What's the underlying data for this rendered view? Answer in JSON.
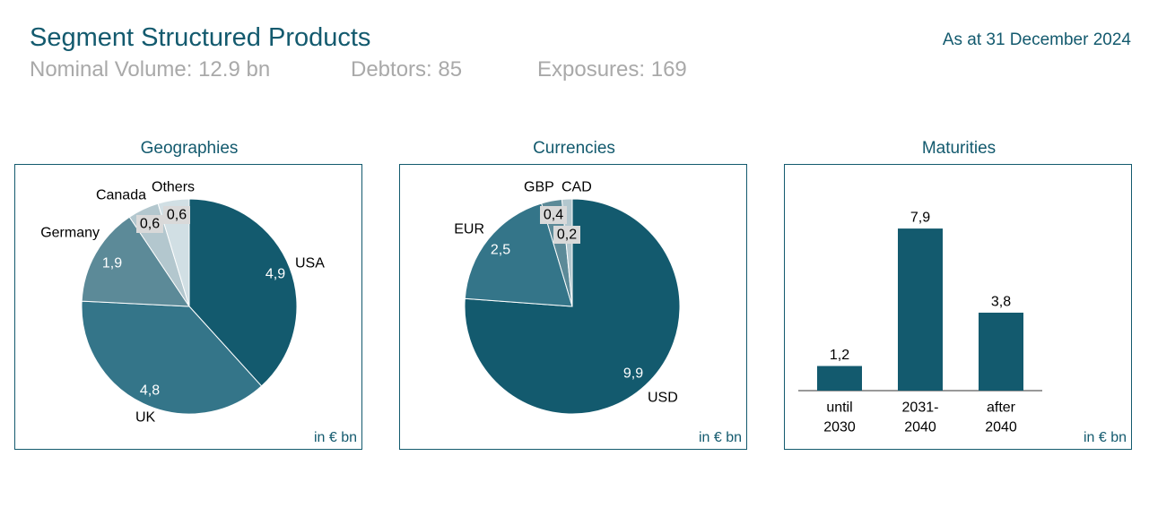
{
  "header": {
    "title": "Segment Structured Products",
    "date": "As at 31 December 2024",
    "stats": [
      "Nominal Volume: 12.9 bn",
      "Debtors: 85",
      "Exposures: 169"
    ]
  },
  "unit_label": "in € bn",
  "chart_data": [
    {
      "type": "pie",
      "title": "Geographies",
      "slices": [
        {
          "label": "USA",
          "value": 4.9,
          "value_label": "4,9",
          "color": "#135a6e"
        },
        {
          "label": "UK",
          "value": 4.8,
          "value_label": "4,8",
          "color": "#347589"
        },
        {
          "label": "Germany",
          "value": 1.9,
          "value_label": "1,9",
          "color": "#5c8a98"
        },
        {
          "label": "Canada",
          "value": 0.6,
          "value_label": "0,6",
          "color": "#b3c7ce"
        },
        {
          "label": "Others",
          "value": 0.6,
          "value_label": "0,6",
          "color": "#d1dfe4"
        }
      ]
    },
    {
      "type": "pie",
      "title": "Currencies",
      "slices": [
        {
          "label": "USD",
          "value": 9.9,
          "value_label": "9,9",
          "color": "#135a6e"
        },
        {
          "label": "EUR",
          "value": 2.5,
          "value_label": "2,5",
          "color": "#347589"
        },
        {
          "label": "GBP",
          "value": 0.4,
          "value_label": "0,4",
          "color": "#5c8a98"
        },
        {
          "label": "CAD",
          "value": 0.2,
          "value_label": "0,2",
          "color": "#b3c7ce"
        }
      ]
    },
    {
      "type": "bar",
      "title": "Maturities",
      "categories": [
        [
          "until",
          "2030"
        ],
        [
          "2031-",
          "2040"
        ],
        [
          "after",
          "2040"
        ]
      ],
      "values": [
        1.2,
        7.9,
        3.8
      ],
      "value_labels": [
        "1,2",
        "7,9",
        "3,8"
      ],
      "color": "#135a6e"
    }
  ]
}
